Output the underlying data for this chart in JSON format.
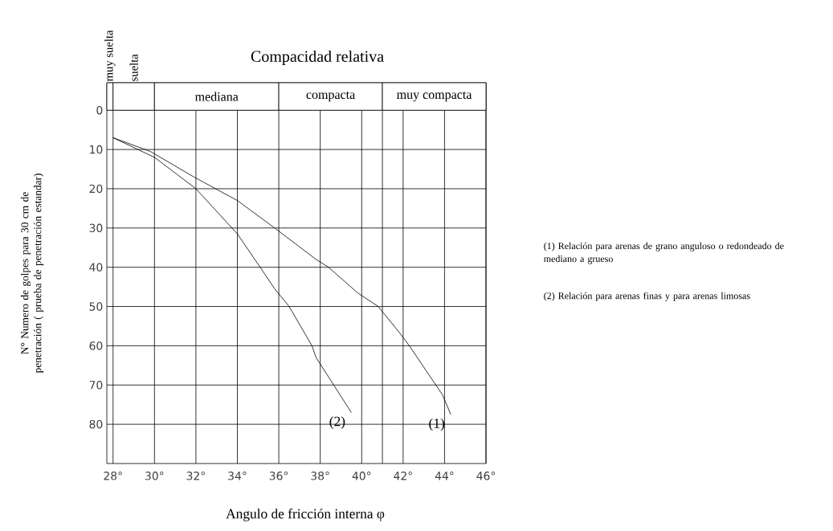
{
  "chart_data": {
    "type": "line",
    "title": "Compacidad       relativa",
    "xlabel": "Angulo de fricción interna       φ",
    "ylabel": "N° Numero de golpes para 30 cm de penetración ( prueba de penetración estandar)",
    "xlim": [
      27.7,
      46
    ],
    "ylim": [
      90,
      -7
    ],
    "xticks": [
      {
        "value": 28,
        "label": "28°"
      },
      {
        "value": 30,
        "label": "30°"
      },
      {
        "value": 32,
        "label": "32°"
      },
      {
        "value": 34,
        "label": "34°"
      },
      {
        "value": 36,
        "label": "36°"
      },
      {
        "value": 38,
        "label": "38°"
      },
      {
        "value": 40,
        "label": "40°"
      },
      {
        "value": 41,
        "label": null
      },
      {
        "value": 42,
        "label": "42°"
      },
      {
        "value": 44,
        "label": "44°"
      },
      {
        "value": 46,
        "label": "46°"
      }
    ],
    "yticks": [
      0,
      10,
      20,
      30,
      40,
      50,
      60,
      70,
      80
    ],
    "grid": true,
    "marker": "none",
    "line_style": "solid",
    "bands": [
      {
        "axis": "x",
        "from": 27.7,
        "to": 28,
        "label": "muy suelta"
      },
      {
        "axis": "x",
        "from": 28,
        "to": 30,
        "label": "suelta"
      },
      {
        "axis": "x",
        "from": 30,
        "to": 36,
        "label": "mediana"
      },
      {
        "axis": "x",
        "from": 36,
        "to": 41,
        "label": "compacta"
      },
      {
        "axis": "x",
        "from": 41,
        "to": 46,
        "label": "muy  compacta"
      }
    ],
    "series": [
      {
        "name": "(1)",
        "color": "#000000",
        "x": [
          28,
          29.8,
          31.9,
          34,
          35.8,
          37.8,
          38.4,
          39.8,
          40.8,
          41.8,
          42.3,
          43.9,
          44.3
        ],
        "values": [
          7,
          10.5,
          17,
          23,
          30,
          38,
          40,
          46.5,
          50,
          56.5,
          60,
          72.5,
          77.5
        ]
      },
      {
        "name": "(2)",
        "color": "#000000",
        "x": [
          28,
          30,
          32,
          34,
          35.1,
          35.8,
          36.5,
          37.6,
          37.8,
          39.5
        ],
        "values": [
          7,
          12,
          20,
          31.5,
          40,
          45.5,
          50,
          60,
          63,
          77
        ]
      }
    ],
    "annotations": [
      "(1) Relación para arenas de grano anguloso o redondeado de mediano a grueso",
      "(2) Relación para arenas finas  y para arenas limosas"
    ]
  }
}
